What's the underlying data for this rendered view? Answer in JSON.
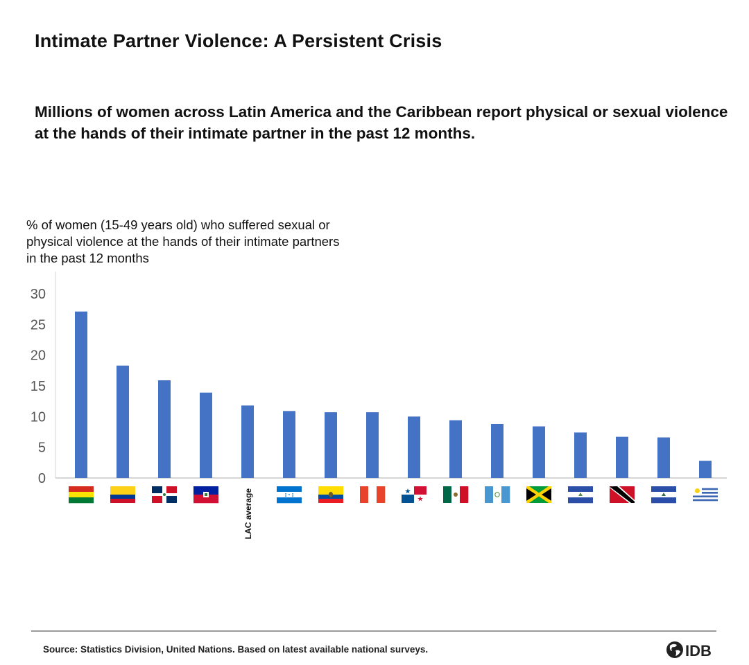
{
  "title": "Intimate Partner Violence: A Persistent Crisis",
  "subtitle": "Millions of women across Latin America and the Caribbean report physical or sexual violence at the hands of their intimate partner in the past 12 months.",
  "source": "Source: Statistics Division, United Nations. Based on latest available national surveys.",
  "logo": {
    "text": "IDB",
    "icon": "idb-globe-logo-icon"
  },
  "chart_data": {
    "type": "bar",
    "title": "",
    "ylabel": "% of women (15-49 years old) who suffered sexual or physical violence at the hands of their intimate partners in  the past 12 months",
    "xlabel": "",
    "ylim": [
      0,
      30
    ],
    "yticks": [
      0,
      5,
      10,
      15,
      20,
      25,
      30
    ],
    "grid": false,
    "bar_color": "#4472c4",
    "categories": [
      {
        "flag": "bolivia-flag-icon",
        "label": ""
      },
      {
        "flag": "colombia-flag-icon",
        "label": ""
      },
      {
        "flag": "dominican-republic-flag-icon",
        "label": ""
      },
      {
        "flag": "haiti-flag-icon",
        "label": ""
      },
      {
        "flag": "",
        "label": "LAC average"
      },
      {
        "flag": "honduras-flag-icon",
        "label": ""
      },
      {
        "flag": "ecuador-flag-icon",
        "label": ""
      },
      {
        "flag": "peru-flag-icon",
        "label": ""
      },
      {
        "flag": "panama-flag-icon",
        "label": ""
      },
      {
        "flag": "mexico-flag-icon",
        "label": ""
      },
      {
        "flag": "guatemala-flag-icon",
        "label": ""
      },
      {
        "flag": "jamaica-flag-icon",
        "label": ""
      },
      {
        "flag": "nicaragua-flag-icon",
        "label": ""
      },
      {
        "flag": "trinidad-and-tobago-flag-icon",
        "label": ""
      },
      {
        "flag": "el-salvador-flag-icon",
        "label": ""
      },
      {
        "flag": "uruguay-flag-icon",
        "label": ""
      }
    ],
    "values": [
      27.1,
      18.3,
      15.9,
      13.9,
      11.8,
      10.9,
      10.7,
      10.7,
      10.0,
      9.4,
      8.8,
      8.4,
      7.4,
      6.7,
      6.6,
      2.8
    ]
  }
}
